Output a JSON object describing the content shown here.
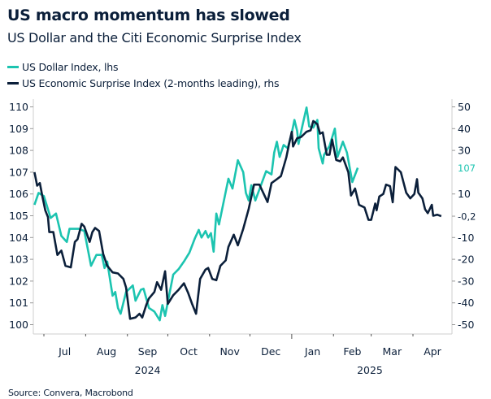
{
  "title": "US macro momentum has slowed",
  "subtitle": "US Dollar and the Citi Economic Surprise Index",
  "source": "Source: Convera, Macrobond",
  "colors": {
    "usd": "#1cc4b0",
    "surprise": "#0b1f3a",
    "axis": "#cfcfcf"
  },
  "chart_data": {
    "type": "line",
    "title": "US macro momentum has slowed",
    "subtitle": "US Dollar and the Citi Economic Surprise Index",
    "legend_placement": "top-left",
    "grid": false,
    "x_axis": {
      "months": [
        {
          "label": "Jul",
          "date": "2024-07-01"
        },
        {
          "label": "Aug",
          "date": "2024-08-01"
        },
        {
          "label": "Sep",
          "date": "2024-09-01"
        },
        {
          "label": "Oct",
          "date": "2024-10-01"
        },
        {
          "label": "Nov",
          "date": "2024-11-01"
        },
        {
          "label": "Dec",
          "date": "2024-12-01"
        },
        {
          "label": "Jan",
          "date": "2025-01-01"
        },
        {
          "label": "Feb",
          "date": "2025-02-01"
        },
        {
          "label": "Mar",
          "date": "2025-03-01"
        },
        {
          "label": "Apr",
          "date": "2025-04-01"
        }
      ],
      "years": [
        {
          "label": "2024",
          "date": "2024-09-16"
        },
        {
          "label": "2025",
          "date": "2025-02-28"
        }
      ]
    },
    "y_left": {
      "min": 100,
      "max": 110,
      "ticks": [
        110,
        109,
        108,
        107,
        106,
        105,
        104,
        103,
        102,
        101,
        100
      ]
    },
    "y_right": {
      "min": -50,
      "max": 50,
      "ticks": [
        "50",
        "40",
        "30",
        "10",
        "-10",
        "-20",
        "-30",
        "-40",
        "-50"
      ]
    },
    "last_value_labels": {
      "usd": "107",
      "surprise": "-0,2"
    },
    "series": [
      {
        "name": "US Dollar Index, lhs",
        "axis": "left",
        "points": [
          [
            "2024-06-24",
            105.5
          ],
          [
            "2024-06-27",
            106.05
          ],
          [
            "2024-07-01",
            105.9
          ],
          [
            "2024-07-06",
            104.9
          ],
          [
            "2024-07-10",
            105.1
          ],
          [
            "2024-07-14",
            104.07
          ],
          [
            "2024-07-18",
            103.8
          ],
          [
            "2024-07-20",
            104.4
          ],
          [
            "2024-07-27",
            104.4
          ],
          [
            "2024-07-31",
            104.3
          ],
          [
            "2024-08-05",
            102.7
          ],
          [
            "2024-08-09",
            103.2
          ],
          [
            "2024-08-13",
            103.2
          ],
          [
            "2024-08-15",
            102.6
          ],
          [
            "2024-08-17",
            102.9
          ],
          [
            "2024-08-21",
            101.33
          ],
          [
            "2024-08-23",
            101.5
          ],
          [
            "2024-08-25",
            100.77
          ],
          [
            "2024-08-27",
            100.5
          ],
          [
            "2024-08-31",
            101.5
          ],
          [
            "2024-09-05",
            101.8
          ],
          [
            "2024-09-07",
            101.1
          ],
          [
            "2024-09-11",
            101.6
          ],
          [
            "2024-09-13",
            101.65
          ],
          [
            "2024-09-17",
            100.77
          ],
          [
            "2024-09-21",
            100.6
          ],
          [
            "2024-09-25",
            100.2
          ],
          [
            "2024-09-27",
            100.9
          ],
          [
            "2024-09-29",
            100.4
          ],
          [
            "2024-10-05",
            102.3
          ],
          [
            "2024-10-09",
            102.55
          ],
          [
            "2024-10-13",
            102.9
          ],
          [
            "2024-10-17",
            103.3
          ],
          [
            "2024-10-21",
            103.95
          ],
          [
            "2024-10-24",
            104.35
          ],
          [
            "2024-10-26",
            104.0
          ],
          [
            "2024-10-29",
            104.3
          ],
          [
            "2024-10-31",
            104.0
          ],
          [
            "2024-11-02",
            104.2
          ],
          [
            "2024-11-04",
            103.35
          ],
          [
            "2024-11-06",
            105.1
          ],
          [
            "2024-11-08",
            104.6
          ],
          [
            "2024-11-12",
            105.8
          ],
          [
            "2024-11-15",
            106.7
          ],
          [
            "2024-11-18",
            106.25
          ],
          [
            "2024-11-22",
            107.55
          ],
          [
            "2024-11-26",
            107.0
          ],
          [
            "2024-11-28",
            106.05
          ],
          [
            "2024-11-30",
            105.7
          ],
          [
            "2024-12-02",
            106.4
          ],
          [
            "2024-12-05",
            105.7
          ],
          [
            "2024-12-13",
            107.05
          ],
          [
            "2024-12-17",
            106.9
          ],
          [
            "2024-12-19",
            107.9
          ],
          [
            "2024-12-21",
            108.4
          ],
          [
            "2024-12-23",
            107.7
          ],
          [
            "2024-12-26",
            108.25
          ],
          [
            "2024-12-29",
            108.1
          ],
          [
            "2025-01-01",
            108.8
          ],
          [
            "2025-01-03",
            109.4
          ],
          [
            "2025-01-05",
            108.9
          ],
          [
            "2025-01-06",
            108.3
          ],
          [
            "2025-01-09",
            109.15
          ],
          [
            "2025-01-12",
            109.97
          ],
          [
            "2025-01-14",
            109.1
          ],
          [
            "2025-01-17",
            109.05
          ],
          [
            "2025-01-20",
            109.4
          ],
          [
            "2025-01-21",
            108.1
          ],
          [
            "2025-01-24",
            107.4
          ],
          [
            "2025-01-25",
            107.8
          ],
          [
            "2025-01-29",
            108.2
          ],
          [
            "2025-02-02",
            109.0
          ],
          [
            "2025-02-04",
            107.7
          ],
          [
            "2025-02-08",
            108.4
          ],
          [
            "2025-02-11",
            107.9
          ],
          [
            "2025-02-15",
            106.55
          ],
          [
            "2025-02-19",
            107.2
          ]
        ]
      },
      {
        "name": "US Economic Surprise Index (2-months leading), rhs",
        "axis": "right",
        "points": [
          [
            "2024-06-24",
            20
          ],
          [
            "2024-06-26",
            13.8
          ],
          [
            "2024-06-28",
            15
          ],
          [
            "2024-06-30",
            8.6
          ],
          [
            "2024-07-02",
            2.5
          ],
          [
            "2024-07-04",
            -0.6
          ],
          [
            "2024-07-05",
            -7.5
          ],
          [
            "2024-07-08",
            -7.5
          ],
          [
            "2024-07-11",
            -18
          ],
          [
            "2024-07-14",
            -16
          ],
          [
            "2024-07-17",
            -23
          ],
          [
            "2024-07-21",
            -23.7
          ],
          [
            "2024-07-24",
            -12
          ],
          [
            "2024-07-26",
            -10.8
          ],
          [
            "2024-07-29",
            -3.7
          ],
          [
            "2024-07-31",
            -5
          ],
          [
            "2024-08-04",
            -12
          ],
          [
            "2024-08-06",
            -7.5
          ],
          [
            "2024-08-08",
            -5.6
          ],
          [
            "2024-08-11",
            -7
          ],
          [
            "2024-08-14",
            -17.5
          ],
          [
            "2024-08-17",
            -23
          ],
          [
            "2024-08-21",
            -26
          ],
          [
            "2024-08-25",
            -26.5
          ],
          [
            "2024-08-29",
            -29
          ],
          [
            "2024-08-31",
            -33
          ],
          [
            "2024-09-03",
            -47.3
          ],
          [
            "2024-09-07",
            -46.7
          ],
          [
            "2024-09-10",
            -45
          ],
          [
            "2024-09-12",
            -46.7
          ],
          [
            "2024-09-15",
            -41
          ],
          [
            "2024-09-17",
            -38
          ],
          [
            "2024-09-21",
            -35
          ],
          [
            "2024-09-23",
            -30.5
          ],
          [
            "2024-09-26",
            -34
          ],
          [
            "2024-09-29",
            -25.5
          ],
          [
            "2024-10-01",
            -40.5
          ],
          [
            "2024-10-05",
            -36.5
          ],
          [
            "2024-10-09",
            -34
          ],
          [
            "2024-10-13",
            -31
          ],
          [
            "2024-10-16",
            -35.3
          ],
          [
            "2024-10-19",
            -40.5
          ],
          [
            "2024-10-22",
            -45
          ],
          [
            "2024-10-25",
            -29
          ],
          [
            "2024-10-29",
            -24.7
          ],
          [
            "2024-10-31",
            -24
          ],
          [
            "2024-11-03",
            -29
          ],
          [
            "2024-11-06",
            -29.6
          ],
          [
            "2024-11-09",
            -23
          ],
          [
            "2024-11-13",
            -20.5
          ],
          [
            "2024-11-15",
            -14.3
          ],
          [
            "2024-11-19",
            -8.7
          ],
          [
            "2024-11-22",
            -13.6
          ],
          [
            "2024-11-26",
            -6
          ],
          [
            "2024-11-30",
            3.1
          ],
          [
            "2024-12-04",
            14.3
          ],
          [
            "2024-12-08",
            14.3
          ],
          [
            "2024-12-14",
            6.3
          ],
          [
            "2024-12-17",
            15
          ],
          [
            "2024-12-21",
            16.8
          ],
          [
            "2024-12-24",
            18.2
          ],
          [
            "2024-12-28",
            26.8
          ],
          [
            "2024-12-30",
            33
          ],
          [
            "2025-01-01",
            38.5
          ],
          [
            "2025-01-02",
            31.8
          ],
          [
            "2025-01-05",
            35.6
          ],
          [
            "2025-01-08",
            36.2
          ],
          [
            "2025-01-12",
            38.6
          ],
          [
            "2025-01-15",
            39.2
          ],
          [
            "2025-01-17",
            43.5
          ],
          [
            "2025-01-20",
            42
          ],
          [
            "2025-01-22",
            37.7
          ],
          [
            "2025-01-24",
            38.3
          ],
          [
            "2025-01-27",
            28
          ],
          [
            "2025-01-29",
            28
          ],
          [
            "2025-01-31",
            35
          ],
          [
            "2025-02-03",
            25.6
          ],
          [
            "2025-02-06",
            25
          ],
          [
            "2025-02-08",
            26.8
          ],
          [
            "2025-02-12",
            20
          ],
          [
            "2025-02-14",
            9.3
          ],
          [
            "2025-02-17",
            12.5
          ],
          [
            "2025-02-20",
            5
          ],
          [
            "2025-02-24",
            3.8
          ],
          [
            "2025-02-27",
            -1.9
          ],
          [
            "2025-03-01",
            -1.9
          ],
          [
            "2025-03-04",
            5.6
          ],
          [
            "2025-03-05",
            2.5
          ],
          [
            "2025-03-07",
            8.8
          ],
          [
            "2025-03-10",
            10
          ],
          [
            "2025-03-12",
            14.3
          ],
          [
            "2025-03-15",
            13.6
          ],
          [
            "2025-03-17",
            6.2
          ],
          [
            "2025-03-19",
            22.4
          ],
          [
            "2025-03-23",
            20
          ],
          [
            "2025-03-27",
            10.6
          ],
          [
            "2025-03-30",
            8
          ],
          [
            "2025-04-02",
            10
          ],
          [
            "2025-04-04",
            16.8
          ],
          [
            "2025-04-05",
            10.6
          ],
          [
            "2025-04-08",
            8
          ],
          [
            "2025-04-10",
            3
          ],
          [
            "2025-04-12",
            1.2
          ],
          [
            "2025-04-15",
            5
          ],
          [
            "2025-04-16",
            0
          ],
          [
            "2025-04-19",
            0.5
          ],
          [
            "2025-04-22",
            -0.2
          ]
        ]
      }
    ]
  }
}
